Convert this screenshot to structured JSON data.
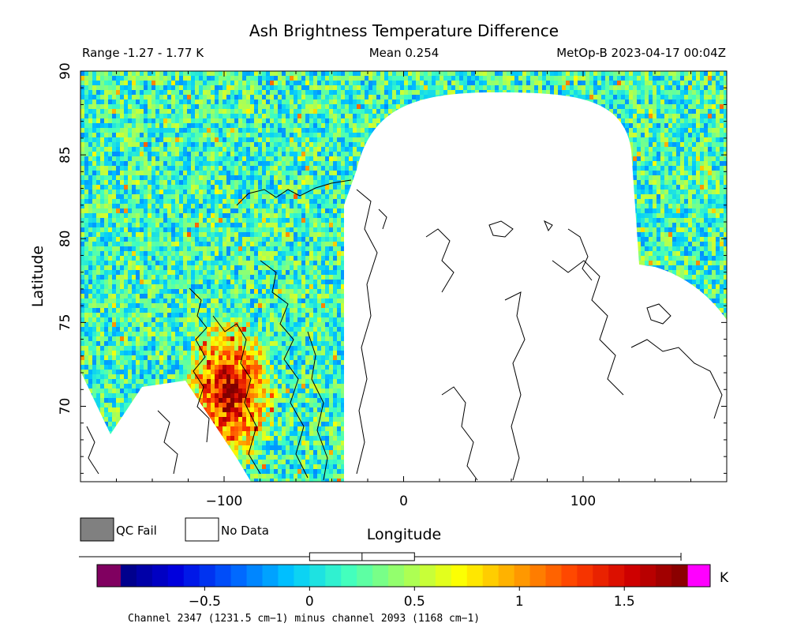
{
  "chart_data": {
    "type": "heatmap",
    "title": "Ash Brightness Temperature Difference",
    "subtitle": {
      "range": "Range -1.27 - 1.77 K",
      "mean": "Mean 0.254",
      "satellite_time": "MetOp-B 2023-04-17 00:04Z"
    },
    "xlabel": "Longitude",
    "ylabel": "Latitude",
    "xlim": [
      -180,
      180
    ],
    "ylim": [
      65.5,
      90
    ],
    "x_ticks": [
      -100,
      0,
      100
    ],
    "x_tick_labels": [
      "−100",
      "0",
      "100"
    ],
    "y_ticks": [
      70,
      75,
      80,
      85,
      90
    ],
    "y_tick_labels": [
      "70",
      "75",
      "80",
      "85",
      "90"
    ],
    "stats": {
      "min": -1.27,
      "max": 1.77,
      "mean": 0.254,
      "units": "K"
    },
    "legend": [
      {
        "label": "QC Fail",
        "color": "#808080"
      },
      {
        "label": "No Data",
        "color": "#ffffff"
      }
    ],
    "colorbar": {
      "range": [
        -0.9,
        1.8
      ],
      "ticks": [
        -0.5,
        0,
        0.5,
        1,
        1.5
      ],
      "tick_labels": [
        "−0.5",
        "0",
        "0.5",
        "1",
        "1.5"
      ],
      "units": "K",
      "under_color": "#800060",
      "over_color": "#ff00ff",
      "stops": [
        "#000080",
        "#0000e0",
        "#0060ff",
        "#00c8ff",
        "#40ffc0",
        "#a0ff60",
        "#ffff00",
        "#ffa000",
        "#ff4000",
        "#d00000",
        "#800000"
      ]
    },
    "boxplot": {
      "min": -1.27,
      "q1": 0.0,
      "median": 0.25,
      "q3": 0.5,
      "max": 1.77
    },
    "footnote": "Channel 2347 (1231.5 cm−1) minus channel 2093 (1168 cm−1)"
  }
}
